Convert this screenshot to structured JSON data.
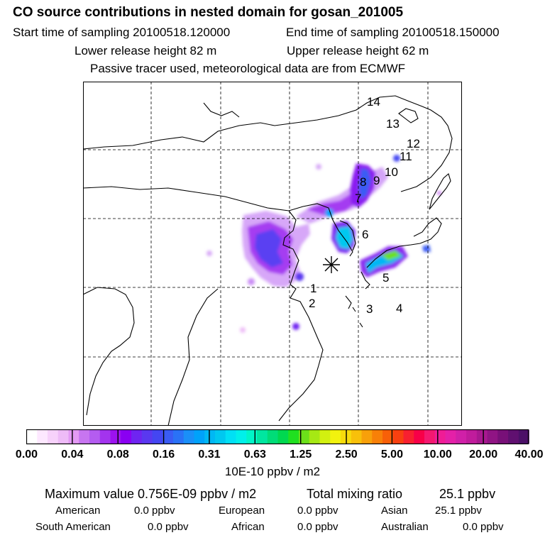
{
  "header": {
    "title": "CO  source contributions in nested domain for gosan_201005",
    "start_time": "Start time of sampling 20100518.120000",
    "end_time": "End time of sampling 20100518.150000",
    "lower_release": "Lower release height   82 m",
    "upper_release": "Upper release height   62 m",
    "tracer_note": "Passive tracer used, meteorological data are from ECMWF"
  },
  "map": {
    "region_labels": [
      "1",
      "2",
      "3",
      "4",
      "5",
      "6",
      "7",
      "8",
      "9",
      "10",
      "11",
      "12",
      "13",
      "14"
    ],
    "receptor_marker": "asterisk",
    "colors": {
      "land_outline": "#000000",
      "grid": "#000000",
      "background": "#ffffff"
    }
  },
  "colorbar": {
    "ticks": [
      "0.00",
      "0.04",
      "0.08",
      "0.16",
      "0.31",
      "0.63",
      "1.25",
      "2.50",
      "5.00",
      "10.00",
      "20.00",
      "40.00"
    ],
    "unit": "10E-10 ppbv / m2",
    "colors": [
      "#ffffff",
      "#fde8ff",
      "#f7d2fb",
      "#eebbf7",
      "#e39af4",
      "#c775f0",
      "#b45cf0",
      "#a334ee",
      "#9c12ef",
      "#8a00f2",
      "#6f24f1",
      "#5a38f0",
      "#4446f2",
      "#3a5cf4",
      "#2a72f6",
      "#1a8ff8",
      "#00a2fa",
      "#00b8f4",
      "#00c8f0",
      "#00e0f5",
      "#00f0ea",
      "#00f5c8",
      "#00e6a0",
      "#00dc78",
      "#00d850",
      "#20e020",
      "#6ce01a",
      "#a6e814",
      "#d2f010",
      "#f2f20e",
      "#f7dc0c",
      "#f8c00a",
      "#f8a00a",
      "#f88008",
      "#f86008",
      "#f84010",
      "#f82030",
      "#f80048",
      "#f41870",
      "#f01c96",
      "#e420a8",
      "#d020a8",
      "#c01c9c",
      "#a81890",
      "#901484",
      "#781078",
      "#601070",
      "#4c1068"
    ]
  },
  "summary": {
    "max_label": "Maximum value  0.756E-09 ppbv / m2",
    "total_label": "Total mixing ratio",
    "total_value": "25.1 ppbv",
    "regions": [
      {
        "name": "American",
        "value": "0.0 ppbv"
      },
      {
        "name": "European",
        "value": "0.0 ppbv"
      },
      {
        "name": "Asian",
        "value": "25.1 ppbv"
      },
      {
        "name": "South American",
        "value": "0.0 ppbv"
      },
      {
        "name": "African",
        "value": "0.0 ppbv"
      },
      {
        "name": "Australian",
        "value": "0.0 ppbv"
      }
    ]
  }
}
